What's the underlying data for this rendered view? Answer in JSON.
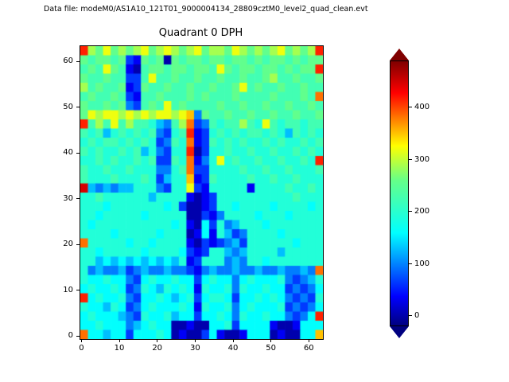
{
  "annotation": {
    "datafile": "Data file: modeM0/AS1A10_121T01_9000004134_28809cztM0_level2_quad_clean.evt"
  },
  "chart_data": {
    "type": "heatmap",
    "title": "Quadrant 0 DPH",
    "xlabel": "",
    "ylabel": "",
    "grid_size": 64,
    "x_range": [
      -0.5,
      63.5
    ],
    "y_range": [
      -0.5,
      63.5
    ],
    "x_ticks": [
      0,
      10,
      20,
      30,
      40,
      50,
      60
    ],
    "y_ticks": [
      0,
      10,
      20,
      30,
      40,
      50,
      60
    ],
    "data_resolution": "32x32 downsampled estimate of the 64x64 detector-plane histogram; each cell spans 2x2 detector pixels",
    "value_encoding": "each hex digit d in grid_rows_top_to_bottom encodes counts = d * value_scale",
    "value_scale": 32,
    "grid_rows_top_to_bottom": [
      "d98a8989 a89a989a 8998a989 89a8989d",
      "87887821 87808788 78878878 78878788",
      "787a8710 78878878 87a87887 8878788d",
      "87787722 7a778778 77877877 89778778",
      "97877812 87787787 78778a78 77877877",
      "78778721 77877787 87778777 7877787c",
      "87787832 787a7877 77877877 87787787",
      "8a9aa9a9 a9aa9ab3 87787787 78778778",
      "d797a797 764379c2 37677976 a7677677",
      "76746767 673267d1 26767677 67647676",
      "67677676 762376c1 27676766 76766767",
      "76766767 463266d0 26676676 67667676",
      "66767667 672276c1 36a67667 6676676d",
      "76676676 663367c2 26666766 76676667",
      "76667666 762466b1 27666676 67667666",
      "e4343446 663266a2 16666616 66676676",
      "66766666 64666610 12666666 66667666",
      "66656666 66656200 12665666 65666656",
      "66566666 56666600 21366665 66656666",
      "65666666 66665610 52634666 56666666",
      "66665666 66566601 51642366 66566666",
      "c6666656 65666610 21234266 66665666",
      "66566666 56666521 26643466 66466666",
      "66454545 45454612 66634366 56666666",
      "63433423 43343321 34334334 3343343c",
      "65565532 56556552 56553565 55632346",
      "56556523 65465651 65563655 65523235",
      "d5655632 55654562 56652556 56532326",
      "65546523 56555651 65563565 55623235",
      "56555432 65564552 55653655 6553235d",
      "55655534 56550010 05562555 51001555",
      "c5545525 55650100 25100155 5010055b"
    ],
    "colormap": {
      "name": "jet",
      "stops": [
        [
          0.0,
          "#000080"
        ],
        [
          0.11,
          "#0000ff"
        ],
        [
          0.35,
          "#00ffff"
        ],
        [
          0.55,
          "#66ff88"
        ],
        [
          0.68,
          "#ffff00"
        ],
        [
          0.88,
          "#ff0000"
        ],
        [
          1.0,
          "#800000"
        ]
      ]
    },
    "colorbar": {
      "vmin": -20,
      "vmax": 490,
      "ticks": [
        0,
        100,
        200,
        300,
        400
      ],
      "extend": "both",
      "position": "right"
    },
    "grid": false,
    "legend": false
  }
}
